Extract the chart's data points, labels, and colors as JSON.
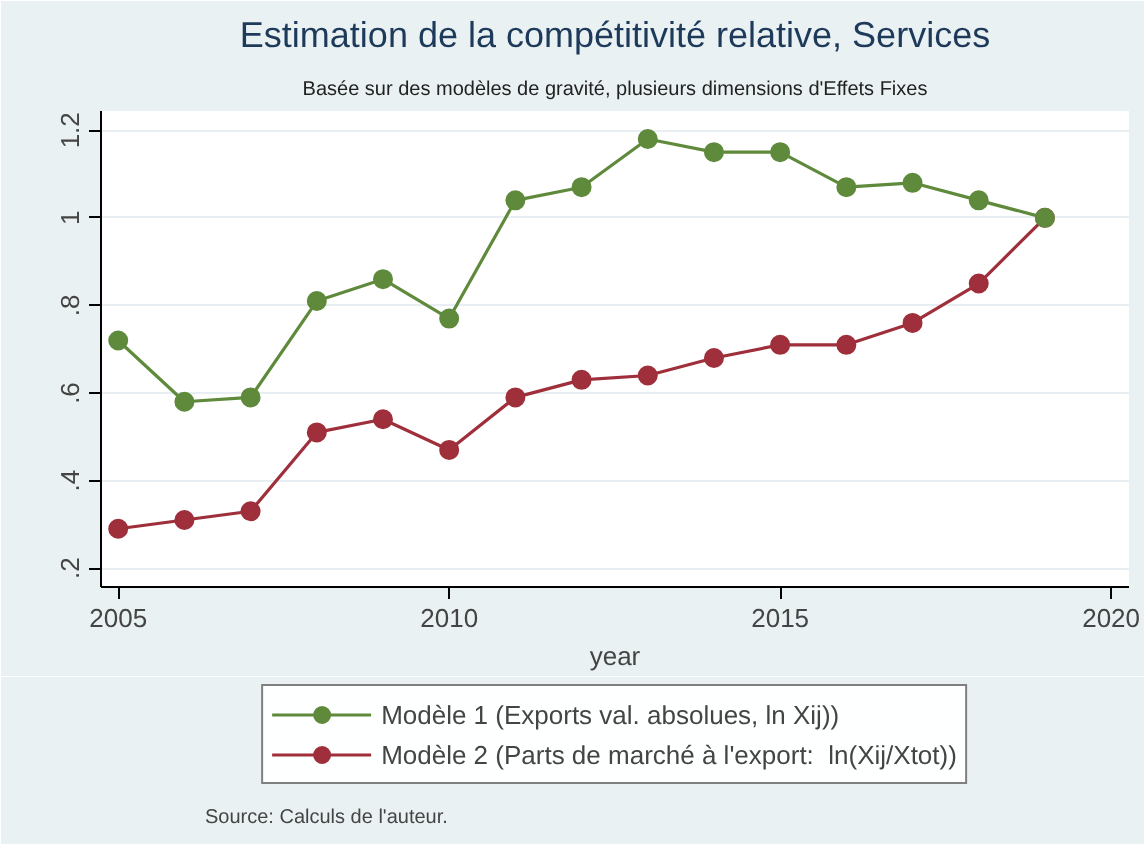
{
  "chart_data": {
    "type": "line",
    "title": "Estimation de la compétitivité relative, Services",
    "subtitle": "Basée sur des modèles de gravité, plusieurs dimensions d'Effets Fixes",
    "xlabel": "year",
    "x": [
      2005,
      2006,
      2007,
      2008,
      2009,
      2010,
      2011,
      2012,
      2013,
      2014,
      2015,
      2016,
      2017,
      2018,
      2019
    ],
    "series": [
      {
        "name": "Modèle 1 (Exports val. absolues, ln Xij))",
        "color": "#5f8a3c",
        "values": [
          0.72,
          0.58,
          0.59,
          0.81,
          0.86,
          0.77,
          1.04,
          1.07,
          1.18,
          1.15,
          1.15,
          1.07,
          1.08,
          1.04,
          1.0
        ]
      },
      {
        "name": "Modèle 2 (Parts de marché à l'export:  ln(Xij/Xtot))",
        "color": "#9e2f3b",
        "values": [
          0.29,
          0.31,
          0.33,
          0.51,
          0.54,
          0.47,
          0.59,
          0.63,
          0.64,
          0.68,
          0.71,
          0.71,
          0.76,
          0.85,
          1.0
        ]
      }
    ],
    "xlim": [
      2004.74,
      2020.27
    ],
    "ylim": [
      0.157,
      1.244
    ],
    "xticks": [
      2005,
      2010,
      2015,
      2020
    ],
    "yticks": [
      {
        "value": 0.2,
        "label": ".2"
      },
      {
        "value": 0.4,
        "label": ".4"
      },
      {
        "value": 0.6,
        "label": ".6"
      },
      {
        "value": 0.8,
        "label": ".8"
      },
      1,
      1.2
    ],
    "grid": "y",
    "legend": "bottom",
    "marker": "circle",
    "line_style": "solid",
    "annotations": [
      "Source: Calculs de l'auteur."
    ]
  }
}
